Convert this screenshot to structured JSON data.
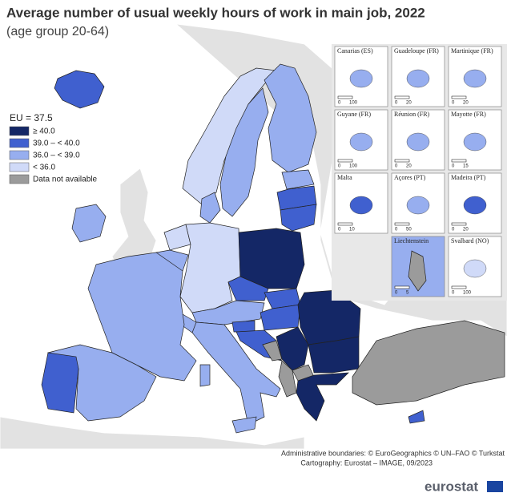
{
  "title": "Average number of usual weekly hours of work in main job, 2022",
  "subtitle": "(age group 20-64)",
  "legend": {
    "title": "EU = 37.5",
    "items": [
      {
        "label": "≥ 40.0",
        "color": "#142766"
      },
      {
        "label": "39.0 – < 40.0",
        "color": "#4060cf"
      },
      {
        "label": "36.0 – < 39.0",
        "color": "#97aeef"
      },
      {
        "label": "< 36.0",
        "color": "#d0daf8"
      },
      {
        "label": "Data not available",
        "color": "#9b9b9b"
      }
    ]
  },
  "insets": [
    {
      "label": "Canarias (ES)",
      "scale": [
        "0",
        "100"
      ]
    },
    {
      "label": "Guadeloupe (FR)",
      "scale": [
        "0",
        "20"
      ]
    },
    {
      "label": "Martinique (FR)",
      "scale": [
        "0",
        "20"
      ]
    },
    {
      "label": "Guyane (FR)",
      "scale": [
        "0",
        "100"
      ]
    },
    {
      "label": "Réunion (FR)",
      "scale": [
        "0",
        "20"
      ]
    },
    {
      "label": "Mayotte (FR)",
      "scale": [
        "0",
        "15"
      ]
    },
    {
      "label": "Malta",
      "scale": [
        "0",
        "10"
      ]
    },
    {
      "label": "Açores (PT)",
      "scale": [
        "0",
        "50"
      ]
    },
    {
      "label": "Madeira (PT)",
      "scale": [
        "0",
        "20"
      ]
    },
    {
      "label": "Liechtenstein",
      "scale": [
        "0",
        "5"
      ]
    },
    {
      "label": "Svalbard (NO)",
      "scale": [
        "0",
        "100"
      ]
    }
  ],
  "credits": [
    "Administrative boundaries: © EuroGeographics © UN–FAO © Turkstat",
    "Cartography: Eurostat – IMAGE, 09/2023"
  ],
  "logo": "eurostat"
}
